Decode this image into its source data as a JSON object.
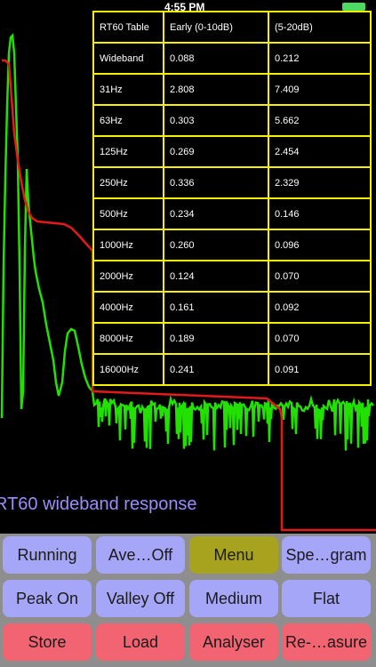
{
  "status": {
    "time": "4:55 PM"
  },
  "colors": {
    "trace_green": "#22e000",
    "trace_red": "#e41a1a",
    "table_border": "#f4f000",
    "caption": "#9b8dfa"
  },
  "table": {
    "rows": [
      [
        "RT60 Table",
        "Early (0-10dB)",
        "(5-20dB)"
      ],
      [
        "Wideband",
        "0.088",
        "0.212"
      ],
      [
        "31Hz",
        "2.808",
        "7.409"
      ],
      [
        "63Hz",
        "0.303",
        "5.662"
      ],
      [
        "125Hz",
        "0.269",
        "2.454"
      ],
      [
        "250Hz",
        "0.336",
        "2.329"
      ],
      [
        "500Hz",
        "0.234",
        "0.146"
      ],
      [
        "1000Hz",
        "0.260",
        "0.096"
      ],
      [
        "2000Hz",
        "0.124",
        "0.070"
      ],
      [
        "4000Hz",
        "0.161",
        "0.092"
      ],
      [
        "8000Hz",
        "0.189",
        "0.070"
      ],
      [
        "16000Hz",
        "0.241",
        "0.091"
      ]
    ]
  },
  "caption": "RT60 wideband response",
  "buttons": [
    {
      "label": "Running",
      "color": "blue"
    },
    {
      "label": "Ave…Off",
      "color": "blue"
    },
    {
      "label": "Menu",
      "color": "olive"
    },
    {
      "label": "Spe…gram",
      "color": "blue"
    },
    {
      "label": "Peak On",
      "color": "blue"
    },
    {
      "label": "Valley Off",
      "color": "blue"
    },
    {
      "label": "Medium",
      "color": "blue"
    },
    {
      "label": "Flat",
      "color": "blue"
    },
    {
      "label": "Store",
      "color": "red"
    },
    {
      "label": "Load",
      "color": "red"
    },
    {
      "label": "Analyser",
      "color": "red"
    },
    {
      "label": "Re-…asure",
      "color": "red"
    }
  ]
}
